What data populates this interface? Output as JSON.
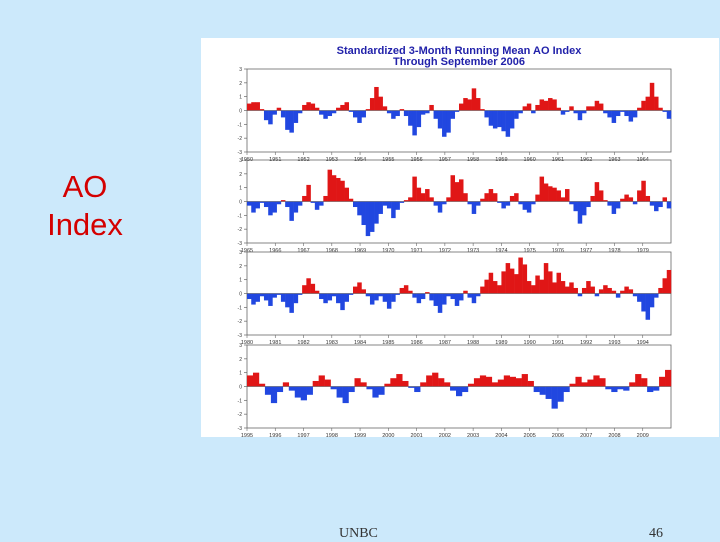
{
  "slide": {
    "label_line1": "AO",
    "label_line2": "Index",
    "footer_org": "UNBC",
    "page_number": "46"
  },
  "colors": {
    "positive": "#e01616",
    "negative": "#2147e0",
    "label": "#d40000",
    "title": "#2222aa",
    "background": "#cce9fb"
  },
  "chart_data": {
    "type": "area",
    "title": "Standardized 3-Month Running Mean AO Index",
    "subtitle": "Through September 2006",
    "ylim": [
      -3,
      3
    ],
    "yticks": [
      "3",
      "2",
      "1",
      "0",
      "-1",
      "-2",
      "-3"
    ],
    "grid": false,
    "panels": [
      {
        "years": [
          "1950",
          "1951",
          "1952",
          "1953",
          "1954",
          "1955",
          "1956",
          "1957",
          "1958",
          "1959",
          "1960",
          "1961",
          "1962",
          "1963",
          "1964"
        ],
        "values": [
          0.5,
          0.6,
          0.6,
          0.1,
          -0.7,
          -1.0,
          -0.3,
          0.2,
          -0.5,
          -1.4,
          -1.6,
          -0.9,
          -0.2,
          0.4,
          0.6,
          0.5,
          0.2,
          -0.3,
          -0.6,
          -0.4,
          -0.2,
          0.2,
          0.4,
          0.6,
          -0.1,
          -0.5,
          -0.9,
          -0.5,
          0.1,
          0.9,
          1.7,
          1.0,
          0.3,
          -0.2,
          -0.6,
          -0.4,
          0.1,
          -0.4,
          -1.1,
          -1.8,
          -1.2,
          -0.3,
          -0.2,
          0.4,
          -0.6,
          -1.3,
          -1.9,
          -1.6,
          -0.6,
          -0.1,
          0.5,
          0.9,
          0.8,
          1.6,
          0.9,
          0.1,
          -0.5,
          -1.1,
          -1.3,
          -1.2,
          -1.5,
          -1.9,
          -1.3,
          -0.6,
          -0.2,
          0.3,
          0.5,
          -0.2,
          0.4,
          0.8,
          0.7,
          0.9,
          0.8,
          0.2,
          -0.3,
          -0.1,
          0.3,
          -0.2,
          -0.7,
          -0.2,
          0.3,
          0.3,
          0.7,
          0.5,
          -0.2,
          -0.5,
          -0.9,
          -0.4,
          -0.1,
          -0.4,
          -0.8,
          -0.5,
          0.2,
          0.7,
          1.0,
          2.0,
          1.0,
          0.2,
          -0.1,
          -0.6
        ]
      },
      {
        "years": [
          "1965",
          "1966",
          "1967",
          "1968",
          "1969",
          "1970",
          "1971",
          "1972",
          "1973",
          "1974",
          "1975",
          "1976",
          "1977",
          "1978",
          "1979"
        ],
        "values": [
          -0.3,
          -0.8,
          -0.5,
          -0.1,
          -0.4,
          -1.0,
          -0.8,
          -0.2,
          0.1,
          -0.4,
          -1.4,
          -0.8,
          -0.3,
          0.4,
          1.2,
          -0.1,
          -0.6,
          -0.3,
          0.4,
          2.3,
          1.9,
          1.7,
          1.5,
          1.0,
          0.2,
          -0.4,
          -1.0,
          -1.7,
          -2.5,
          -2.2,
          -1.6,
          -0.9,
          -0.3,
          -0.5,
          -1.2,
          -0.6,
          -0.1,
          0.1,
          0.3,
          1.8,
          1.0,
          0.6,
          0.9,
          0.3,
          -0.3,
          -0.8,
          -0.2,
          0.3,
          1.9,
          1.4,
          1.6,
          0.6,
          -0.2,
          -0.9,
          -0.3,
          0.2,
          0.6,
          0.9,
          0.6,
          -0.1,
          -0.5,
          -0.3,
          0.4,
          0.6,
          -0.2,
          -0.6,
          -0.8,
          -0.2,
          0.5,
          1.8,
          1.3,
          1.1,
          1.0,
          0.8,
          0.3,
          0.9,
          -0.2,
          -0.7,
          -1.6,
          -1.0,
          -0.4,
          0.4,
          1.4,
          0.8,
          0.1,
          -0.3,
          -0.9,
          -0.5,
          0.2,
          0.5,
          0.3,
          -0.2,
          0.8,
          1.5,
          0.4,
          -0.3,
          -0.7,
          -0.4,
          0.3,
          -0.5
        ]
      },
      {
        "years": [
          "1980",
          "1981",
          "1982",
          "1983",
          "1984",
          "1985",
          "1986",
          "1987",
          "1988",
          "1989",
          "1990",
          "1991",
          "1992",
          "1993",
          "1994"
        ],
        "values": [
          -0.4,
          -0.8,
          -0.6,
          -0.2,
          -0.5,
          -0.9,
          -0.3,
          -0.1,
          -0.6,
          -1.0,
          -1.4,
          -0.7,
          -0.1,
          0.6,
          1.1,
          0.7,
          0.2,
          -0.4,
          -0.7,
          -0.5,
          -0.2,
          -0.7,
          -1.2,
          -0.6,
          -0.1,
          0.5,
          0.8,
          0.3,
          -0.2,
          -0.8,
          -0.5,
          -0.2,
          -0.6,
          -1.1,
          -0.6,
          -0.1,
          0.4,
          0.6,
          0.2,
          -0.3,
          -0.7,
          -0.4,
          0.1,
          -0.5,
          -0.9,
          -1.4,
          -0.8,
          -0.2,
          -0.4,
          -0.9,
          -0.5,
          0.2,
          -0.3,
          -0.7,
          -0.2,
          0.5,
          1.0,
          1.5,
          0.9,
          0.6,
          1.6,
          2.2,
          1.8,
          1.4,
          2.6,
          2.1,
          0.9,
          0.6,
          1.3,
          1.0,
          2.2,
          1.6,
          0.8,
          1.5,
          0.9,
          0.5,
          0.8,
          0.4,
          -0.2,
          0.4,
          0.9,
          0.5,
          -0.2,
          0.3,
          0.6,
          0.4,
          0.2,
          -0.3,
          0.2,
          0.5,
          0.3,
          -0.2,
          -0.6,
          -1.3,
          -1.9,
          -1.0,
          -0.3,
          0.4,
          1.1,
          1.7
        ]
      },
      {
        "years": [
          "1995",
          "1996",
          "1997",
          "1998",
          "1999",
          "2000",
          "2001",
          "2002",
          "2003",
          "2004",
          "2005",
          "2006",
          "2007",
          "2008",
          "2009"
        ],
        "values": [
          0.8,
          1.0,
          0.2,
          -0.6,
          -1.2,
          -0.4,
          0.3,
          -0.3,
          -0.8,
          -1.0,
          -0.6,
          0.4,
          0.8,
          0.5,
          -0.2,
          -0.8,
          -1.2,
          -0.4,
          0.6,
          0.3,
          -0.2,
          -0.8,
          -0.6,
          0.2,
          0.6,
          0.9,
          0.4,
          -0.1,
          -0.4,
          0.3,
          0.8,
          1.0,
          0.6,
          0.3,
          -0.3,
          -0.7,
          -0.4,
          0.2,
          0.6,
          0.8,
          0.7,
          0.3,
          0.5,
          0.8,
          0.7,
          0.6,
          0.9,
          0.4,
          -0.4,
          -0.6,
          -0.9,
          -1.6,
          -1.1,
          -0.4,
          0.2,
          0.7,
          0.3,
          0.5,
          0.8,
          0.6,
          -0.2,
          -0.4,
          -0.2,
          -0.3,
          0.3,
          0.9,
          0.6,
          -0.4,
          -0.3,
          0.7,
          1.2
        ]
      }
    ]
  }
}
